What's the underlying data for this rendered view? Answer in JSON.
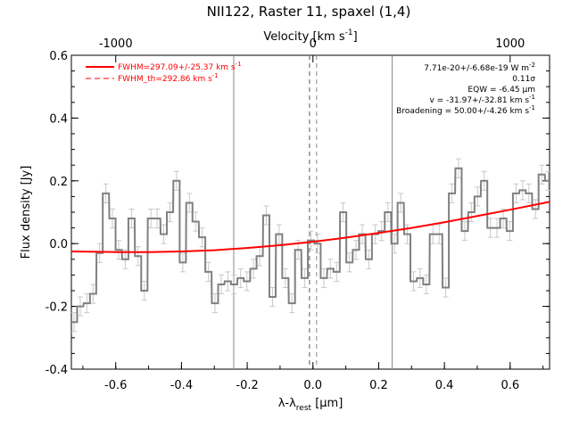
{
  "chart_data": {
    "type": "line",
    "title": "NII122, Raster 11, spaxel (1,4)",
    "xlabel": "λ-λ",
    "xlabel_sub": "rest",
    "xlabel_unit": " [μm]",
    "ylabel": "Flux density [Jy]",
    "top_axis_label": "Velocity [km s",
    "top_axis_label_sup": "-1",
    "top_axis_label_end": "]",
    "xlim": [
      -0.735,
      0.72
    ],
    "ylim": [
      -0.4,
      0.6
    ],
    "x_ticks": [
      "-0.6",
      "-0.4",
      "-0.2",
      "0.0",
      "0.2",
      "0.4",
      "0.6"
    ],
    "x_tick_values": [
      -0.6,
      -0.4,
      -0.2,
      0.0,
      0.2,
      0.4,
      0.6
    ],
    "y_ticks": [
      "-0.4",
      "-0.2",
      "0.0",
      "0.2",
      "0.4",
      "0.6"
    ],
    "y_tick_values": [
      -0.4,
      -0.2,
      0.0,
      0.2,
      0.4,
      0.6
    ],
    "top_ticks": [
      "-1000",
      "0",
      "1000"
    ],
    "top_tick_values": [
      -0.6,
      0.0,
      0.6
    ],
    "vertical_lines": [
      -0.241,
      -0.011,
      0.011,
      0.241
    ],
    "legend": [
      {
        "label": "FWHM=297.09+/-25.37 km s",
        "sup": "-1",
        "color": "#ff0000",
        "style": "solid"
      },
      {
        "label": "FWHM_th=292.86 km s",
        "sup": "-1",
        "color": "#ff0000",
        "style": "dashed"
      }
    ],
    "annotations": [
      {
        "text": "7.71e-20+/-6.68e-19 W m",
        "sup": "-2"
      },
      {
        "text": "0.11σ",
        "sup": ""
      },
      {
        "text": "EQW = -6.45 μm",
        "sup": ""
      },
      {
        "text": "v = -31.97+/-32.81 km s",
        "sup": "-1"
      },
      {
        "text": "Broadening = 50.00+/-4.26 km s",
        "sup": "-1"
      }
    ],
    "series": [
      {
        "name": "spectrum",
        "color": "#808080",
        "x": [
          -0.727,
          -0.708,
          -0.688,
          -0.669,
          -0.649,
          -0.63,
          -0.61,
          -0.591,
          -0.571,
          -0.552,
          -0.532,
          -0.513,
          -0.493,
          -0.474,
          -0.454,
          -0.435,
          -0.415,
          -0.396,
          -0.376,
          -0.357,
          -0.337,
          -0.318,
          -0.298,
          -0.279,
          -0.259,
          -0.24,
          -0.22,
          -0.201,
          -0.181,
          -0.162,
          -0.142,
          -0.123,
          -0.103,
          -0.084,
          -0.064,
          -0.045,
          -0.025,
          -0.006,
          0.014,
          0.033,
          0.053,
          0.072,
          0.092,
          0.111,
          0.131,
          0.15,
          0.17,
          0.189,
          0.209,
          0.228,
          0.248,
          0.267,
          0.287,
          0.306,
          0.326,
          0.345,
          0.365,
          0.384,
          0.404,
          0.423,
          0.443,
          0.462,
          0.482,
          0.501,
          0.521,
          0.54,
          0.56,
          0.579,
          0.599,
          0.618,
          0.638,
          0.657,
          0.677,
          0.696,
          0.716
        ],
        "y": [
          -0.25,
          -0.2,
          -0.19,
          -0.16,
          -0.03,
          0.16,
          0.08,
          -0.02,
          -0.05,
          0.08,
          -0.04,
          -0.15,
          0.08,
          0.08,
          0.03,
          0.1,
          0.2,
          -0.06,
          0.13,
          0.07,
          0.02,
          -0.09,
          -0.19,
          -0.13,
          -0.12,
          -0.13,
          -0.11,
          -0.12,
          -0.08,
          -0.04,
          0.09,
          -0.17,
          0.03,
          -0.11,
          -0.19,
          -0.02,
          -0.11,
          0.01,
          0.0,
          -0.11,
          -0.08,
          -0.09,
          0.1,
          -0.06,
          -0.02,
          0.03,
          -0.05,
          0.03,
          0.04,
          0.1,
          0.0,
          0.13,
          0.03,
          -0.12,
          -0.11,
          -0.13,
          0.03,
          0.03,
          -0.14,
          0.16,
          0.24,
          0.04,
          0.1,
          0.15,
          0.2,
          0.05,
          0.05,
          0.08,
          0.04,
          0.16,
          0.17,
          0.16,
          0.11,
          0.22,
          0.2
        ],
        "err": [
          0.03,
          0.03,
          0.03,
          0.03,
          0.03,
          0.03,
          0.03,
          0.03,
          0.03,
          0.03,
          0.03,
          0.03,
          0.03,
          0.03,
          0.03,
          0.03,
          0.03,
          0.03,
          0.03,
          0.03,
          0.03,
          0.03,
          0.03,
          0.03,
          0.03,
          0.03,
          0.03,
          0.03,
          0.03,
          0.03,
          0.03,
          0.03,
          0.03,
          0.03,
          0.03,
          0.03,
          0.03,
          0.03,
          0.03,
          0.03,
          0.03,
          0.03,
          0.03,
          0.03,
          0.03,
          0.03,
          0.03,
          0.03,
          0.03,
          0.03,
          0.03,
          0.03,
          0.03,
          0.03,
          0.03,
          0.03,
          0.03,
          0.03,
          0.03,
          0.03,
          0.03,
          0.03,
          0.03,
          0.03,
          0.03,
          0.03,
          0.03,
          0.03,
          0.03,
          0.03,
          0.03,
          0.03,
          0.03,
          0.03,
          0.03
        ]
      },
      {
        "name": "FWHM=297.09+/-25.37 km s-1",
        "color": "#ff0000",
        "x": [
          -0.735,
          -0.6,
          -0.5,
          -0.4,
          -0.3,
          -0.2,
          -0.1,
          0.0,
          0.1,
          0.2,
          0.3,
          0.4,
          0.5,
          0.6,
          0.72
        ],
        "y": [
          -0.025,
          -0.027,
          -0.027,
          -0.025,
          -0.021,
          -0.014,
          -0.005,
          0.006,
          0.019,
          0.034,
          0.05,
          0.068,
          0.088,
          0.108,
          0.133
        ]
      }
    ]
  }
}
